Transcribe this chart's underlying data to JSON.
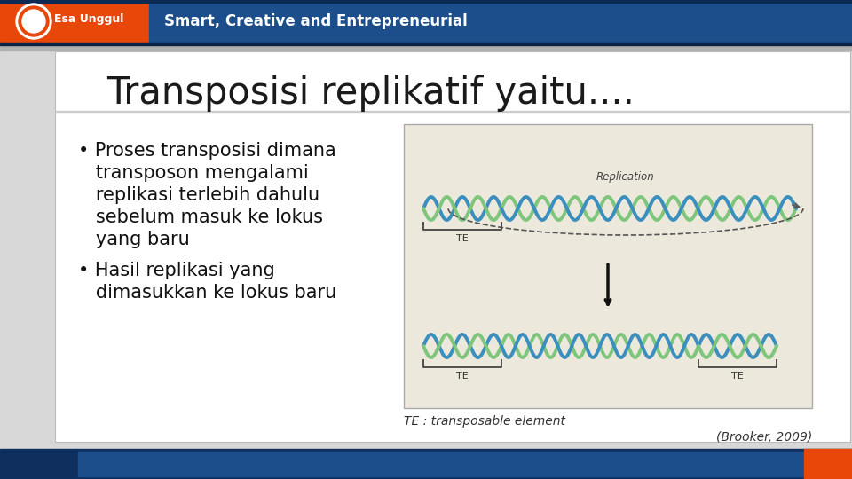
{
  "title": "Transposisi replikatif yaitu....",
  "title_fontsize": 30,
  "title_color": "#1a1a1a",
  "bullet1_line1": "• Proses transposisi dimana",
  "bullet1_line2": "   transposon mengalami",
  "bullet1_line3": "   replikasi terlebih dahulu",
  "bullet1_line4": "   sebelum masuk ke lokus",
  "bullet1_line5": "   yang baru",
  "bullet2_line1": "• Hasil replikasi yang",
  "bullet2_line2": "   dimasukkan ke lokus baru",
  "bullet_fontsize": 15,
  "bullet_color": "#111111",
  "caption1": "TE : transposable element",
  "caption2": "(Brooker, 2009)",
  "caption_fontsize": 10,
  "header_bg_orange": "#E8470A",
  "header_bg_blue": "#1B4E8B",
  "header_text": "Smart, Creative and Entrepreneurial",
  "header_text_color": "#FFFFFF",
  "header_text_fontsize": 12,
  "footer_bg_blue": "#1B4E8B",
  "footer_bg_orange": "#E8470A",
  "slide_bg": "#D8D8D8",
  "content_bg": "#FFFFFF",
  "image_placeholder_bg": "#EDE8DC",
  "image_placeholder_border": "#AAAAAA",
  "dna_blue": "#3A8FBF",
  "dna_green": "#7DC67B"
}
